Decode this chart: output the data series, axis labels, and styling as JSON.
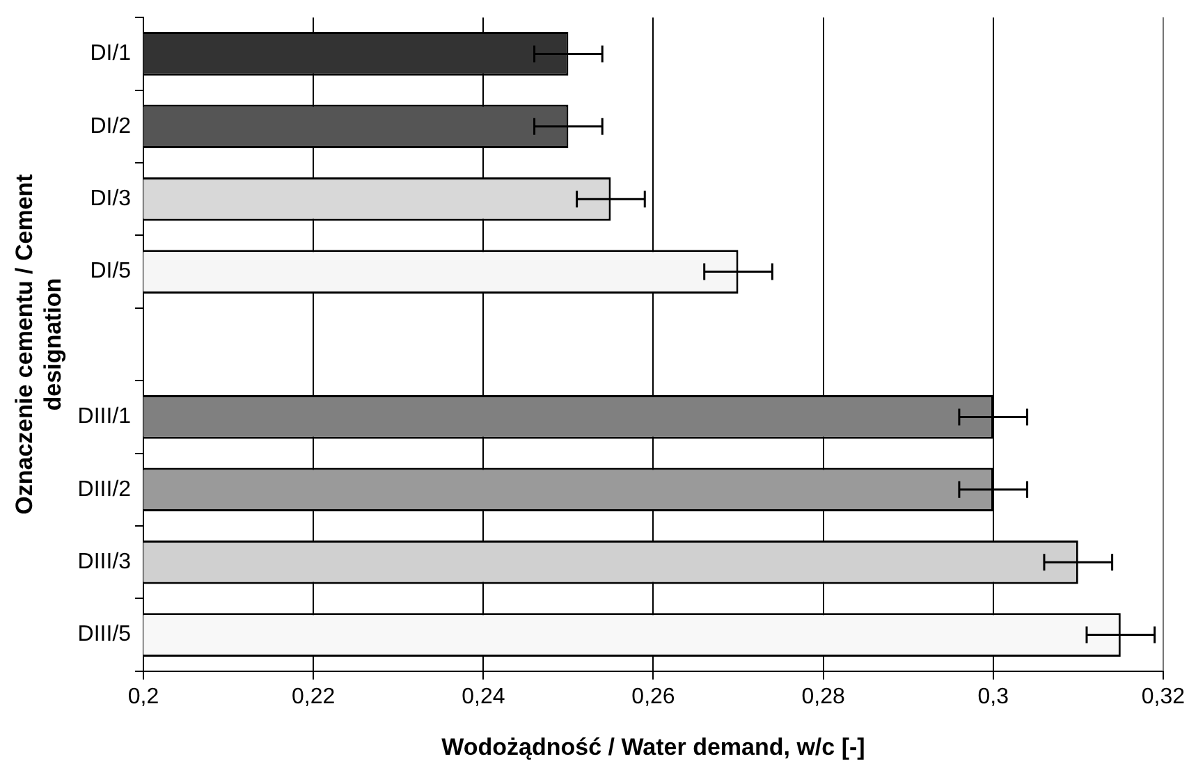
{
  "chart_data": {
    "type": "bar",
    "orientation": "horizontal",
    "xlabel": "Wodożądność / Water demand, w/c [-]",
    "ylabel": "Oznaczenie cementu / Cement designation",
    "categories": [
      "DI/1",
      "DI/2",
      "DI/3",
      "DI/5",
      null,
      "DIII/1",
      "DIII/2",
      "DIII/3",
      "DIII/5"
    ],
    "values": [
      0.25,
      0.25,
      0.255,
      0.27,
      null,
      0.3,
      0.3,
      0.31,
      0.315
    ],
    "errors": [
      0.004,
      0.004,
      0.004,
      0.004,
      null,
      0.004,
      0.004,
      0.004,
      0.004
    ],
    "colors": [
      "#333333",
      "#555555",
      "#d8d8d8",
      "#f6f6f6",
      "#ffffff",
      "#808080",
      "#9a9a9a",
      "#d0d0d0",
      "#f8f8f8"
    ],
    "xlim": [
      0.2,
      0.32
    ],
    "xticks": [
      {
        "value": 0.2,
        "label": "0,2"
      },
      {
        "value": 0.22,
        "label": "0,22"
      },
      {
        "value": 0.24,
        "label": "0,24"
      },
      {
        "value": 0.26,
        "label": "0,26"
      },
      {
        "value": 0.28,
        "label": "0,28"
      },
      {
        "value": 0.3,
        "label": "0,3"
      },
      {
        "value": 0.32,
        "label": "0,32"
      }
    ],
    "grid": "x",
    "legend": false
  }
}
